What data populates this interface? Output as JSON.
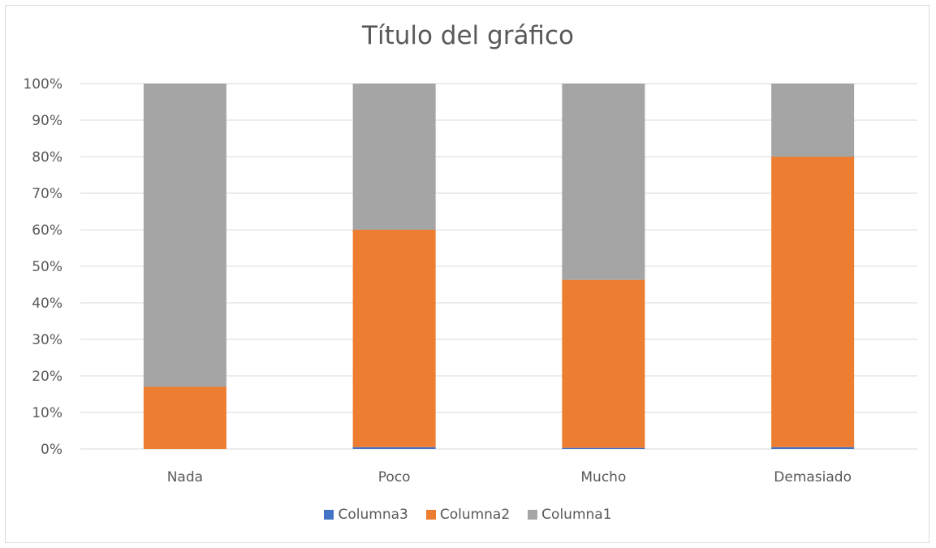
{
  "chart_data": {
    "type": "bar",
    "stacked": true,
    "title": "Título del gráfico",
    "categories": [
      "Nada",
      "Poco",
      "Mucho",
      "Demasiado"
    ],
    "series": [
      {
        "name": "Columna3",
        "color": "#4472c4",
        "values": [
          0,
          0.5,
          0.3,
          0.5
        ]
      },
      {
        "name": "Columna2",
        "color": "#ed7d31",
        "values": [
          17,
          59.5,
          46,
          79.5
        ]
      },
      {
        "name": "Columna1",
        "color": "#a5a5a5",
        "values": [
          83,
          40,
          53.7,
          20
        ]
      }
    ],
    "ylim": [
      0,
      100
    ],
    "y_ticks": [
      "0%",
      "10%",
      "20%",
      "30%",
      "40%",
      "50%",
      "60%",
      "70%",
      "80%",
      "90%",
      "100%"
    ],
    "grid": true,
    "legend_position": "bottom"
  }
}
